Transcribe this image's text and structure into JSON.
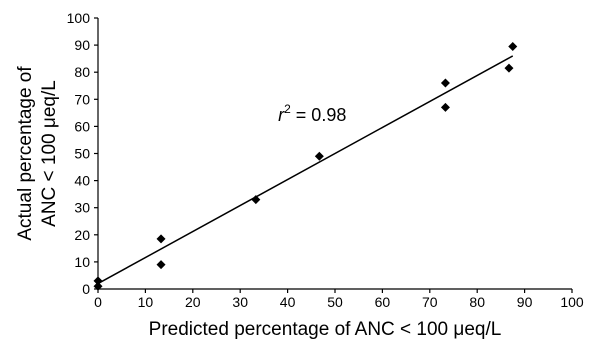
{
  "chart_data": {
    "type": "scatter",
    "xlabel": "Predicted percentage of ANC < 100 μeq/L",
    "ylabel_lines": [
      "Actual percentage of",
      "ANC < 100 μeq/L"
    ],
    "xlim": [
      0,
      100
    ],
    "ylim": [
      0,
      100
    ],
    "xticks": [
      0,
      10,
      20,
      30,
      40,
      50,
      60,
      70,
      80,
      90,
      100
    ],
    "yticks": [
      0,
      10,
      20,
      30,
      40,
      50,
      60,
      70,
      80,
      90,
      100
    ],
    "grid": false,
    "points": [
      {
        "x": 0,
        "y": 3
      },
      {
        "x": 0,
        "y": 1
      },
      {
        "x": 13.3,
        "y": 18.5
      },
      {
        "x": 13.3,
        "y": 9
      },
      {
        "x": 33.3,
        "y": 33
      },
      {
        "x": 46.7,
        "y": 49
      },
      {
        "x": 73.3,
        "y": 76
      },
      {
        "x": 73.3,
        "y": 67
      },
      {
        "x": 86.7,
        "y": 81.5
      },
      {
        "x": 87.5,
        "y": 89.5
      }
    ],
    "fit_line": {
      "x": [
        0,
        87.5
      ],
      "y": [
        2,
        86
      ]
    },
    "annotation": {
      "var": "r",
      "sup": "2",
      "rest": " = 0.98",
      "x": 38,
      "y": 62
    }
  }
}
